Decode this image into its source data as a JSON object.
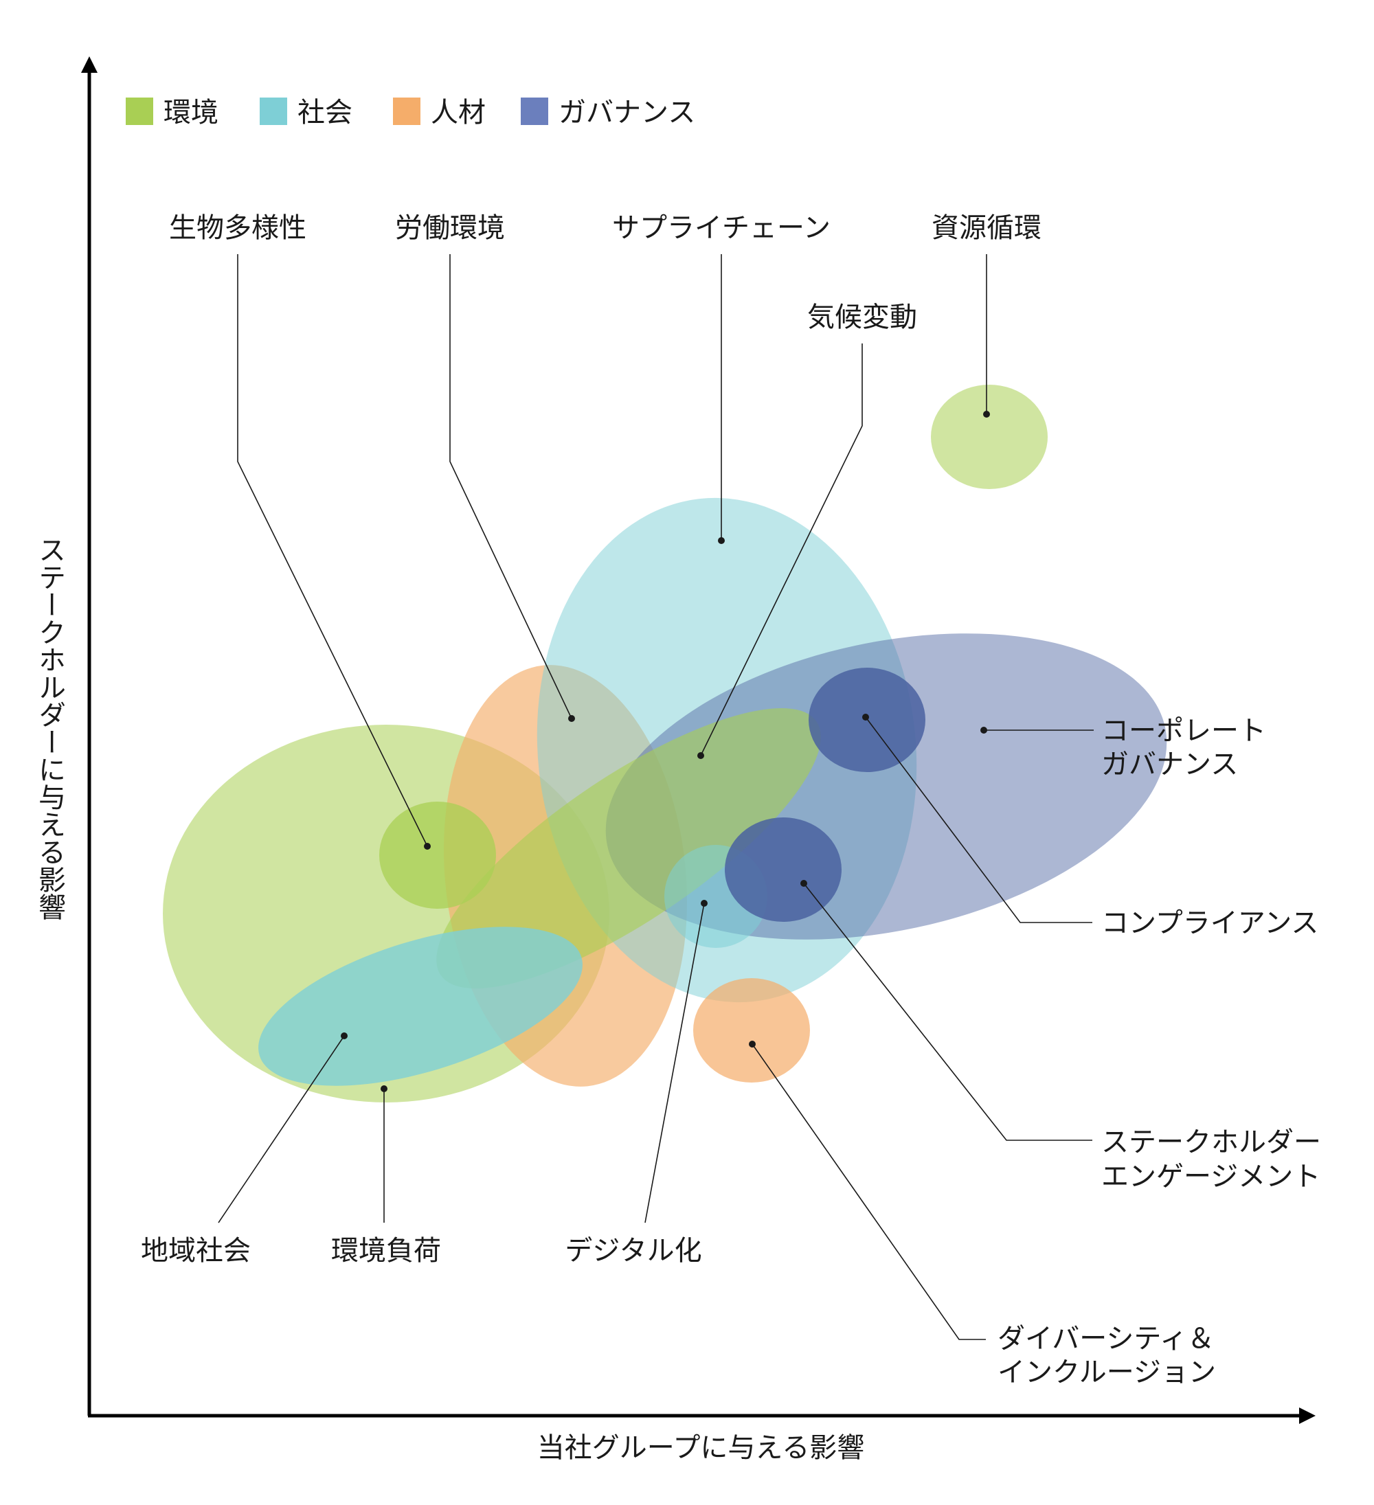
{
  "legend": [
    {
      "key": "env",
      "label": "環境",
      "color": "#a9cf54"
    },
    {
      "key": "soc",
      "label": "社会",
      "color": "#7ecfd6"
    },
    {
      "key": "hr",
      "label": "人材",
      "color": "#f5ad6a"
    },
    {
      "key": "gov",
      "label": "ガバナンス",
      "color": "#6b7fbd"
    }
  ],
  "axes": {
    "x_label": "当社グループに与える影響",
    "y_label": "ステークホルダーに与える影響"
  },
  "topics": {
    "biodiversity": "生物多様性",
    "labor": "労働環境",
    "supply_chain": "サプライチェーン",
    "climate": "気候変動",
    "resource": "資源循環",
    "corp_gov_1": "コーポレート",
    "corp_gov_2": "ガバナンス",
    "compliance": "コンプライアンス",
    "engagement_1": "ステークホルダー",
    "engagement_2": "エンゲージメント",
    "diversity_1": "ダイバーシティ＆",
    "diversity_2": "インクルージョン",
    "community": "地域社会",
    "env_load": "環境負荷",
    "digital": "デジタル化"
  }
}
